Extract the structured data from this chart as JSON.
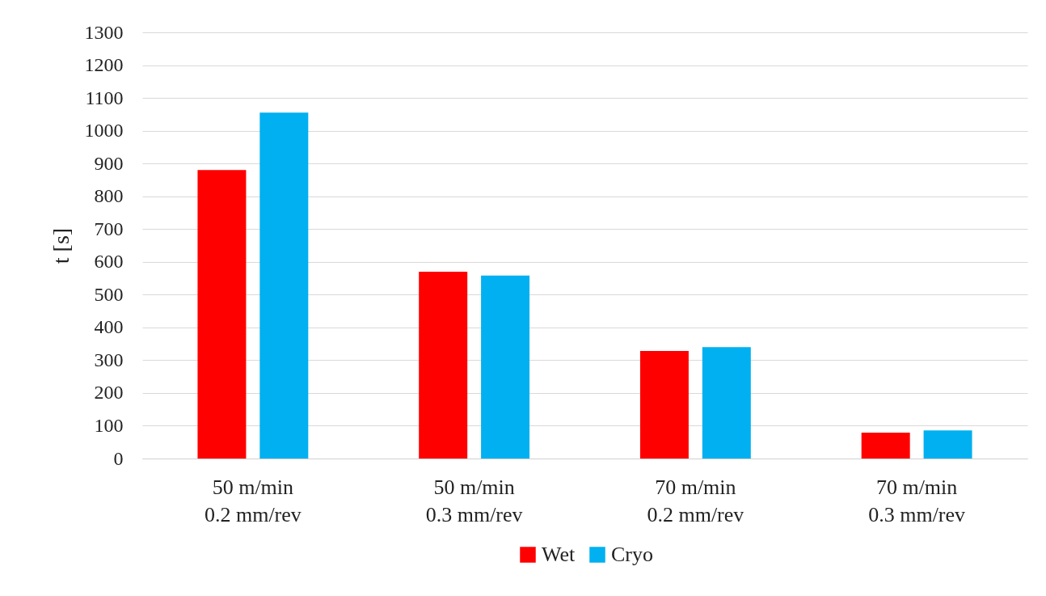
{
  "chart_data": {
    "type": "bar",
    "ylabel": "t [s]",
    "categories": [
      "50 m/min\n0.2 mm/rev",
      "50 m/min\n0.3 mm/rev",
      "70 m/min\n0.2 mm/rev",
      "70 m/min\n0.3 mm/rev"
    ],
    "series": [
      {
        "name": "Wet",
        "color": "#ff0000",
        "values": [
          880,
          570,
          328,
          79
        ]
      },
      {
        "name": "Cryo",
        "color": "#00b0f0",
        "values": [
          1055,
          558,
          340,
          86
        ]
      }
    ],
    "ylim": [
      0,
      1300
    ],
    "yticks": [
      0,
      100,
      200,
      300,
      400,
      500,
      600,
      700,
      800,
      900,
      1000,
      1100,
      1200,
      1300
    ],
    "grid": "y",
    "legend": "bottom"
  }
}
